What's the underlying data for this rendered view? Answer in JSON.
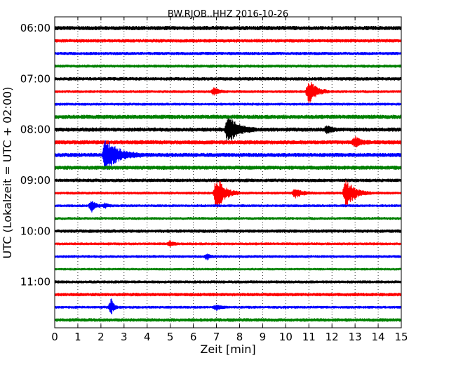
{
  "chart_data": {
    "type": "line",
    "title": "BW.RJOB..HHZ 2016-10-26",
    "xlabel": "Zeit  [min]",
    "ylabel": "UTC (Lokalzeit = UTC + 02:00)",
    "xlim": [
      0,
      15
    ],
    "x_ticks": [
      "0",
      "1",
      "2",
      "3",
      "4",
      "5",
      "6",
      "7",
      "8",
      "9",
      "10",
      "11",
      "12",
      "13",
      "14",
      "15"
    ],
    "y_ticks": [
      "06:00",
      "07:00",
      "08:00",
      "09:00",
      "10:00",
      "11:00"
    ],
    "grid": "vertical dotted at each minute",
    "trace_colors": [
      "#000000",
      "#ff0000",
      "#0000ff",
      "#008000"
    ],
    "series": [
      {
        "start": "06:00",
        "color": "#000000",
        "noise": 3,
        "bursts": []
      },
      {
        "start": "06:15",
        "color": "#ff0000",
        "noise": 2.5,
        "bursts": []
      },
      {
        "start": "06:30",
        "color": "#0000ff",
        "noise": 2.2,
        "bursts": []
      },
      {
        "start": "06:45",
        "color": "#008000",
        "noise": 2.2,
        "bursts": []
      },
      {
        "start": "07:00",
        "color": "#000000",
        "noise": 2.5,
        "bursts": []
      },
      {
        "start": "07:15",
        "color": "#ff0000",
        "noise": 2,
        "bursts": [
          {
            "t": 6.9,
            "amp": 6,
            "dur": 0.6
          },
          {
            "t": 11.0,
            "amp": 18,
            "dur": 0.9
          }
        ]
      },
      {
        "start": "07:30",
        "color": "#0000ff",
        "noise": 2,
        "bursts": []
      },
      {
        "start": "07:45",
        "color": "#008000",
        "noise": 3,
        "bursts": []
      },
      {
        "start": "08:00",
        "color": "#000000",
        "noise": 3,
        "bursts": [
          {
            "t": 7.5,
            "amp": 22,
            "dur": 1.2
          },
          {
            "t": 11.8,
            "amp": 6,
            "dur": 0.5
          }
        ]
      },
      {
        "start": "08:15",
        "color": "#ff0000",
        "noise": 3,
        "bursts": [
          {
            "t": 13.0,
            "amp": 8,
            "dur": 0.7
          }
        ]
      },
      {
        "start": "08:30",
        "color": "#0000ff",
        "noise": 3,
        "bursts": [
          {
            "t": 2.2,
            "amp": 24,
            "dur": 1.6
          }
        ]
      },
      {
        "start": "08:45",
        "color": "#008000",
        "noise": 3,
        "bursts": []
      },
      {
        "start": "09:00",
        "color": "#000000",
        "noise": 2.5,
        "bursts": []
      },
      {
        "start": "09:15",
        "color": "#ff0000",
        "noise": 2,
        "bursts": [
          {
            "t": 7.0,
            "amp": 26,
            "dur": 1.0
          },
          {
            "t": 10.4,
            "amp": 7,
            "dur": 0.9
          },
          {
            "t": 12.6,
            "amp": 22,
            "dur": 1.1
          }
        ]
      },
      {
        "start": "09:30",
        "color": "#0000ff",
        "noise": 2,
        "bursts": [
          {
            "t": 1.6,
            "amp": 8,
            "dur": 0.5
          },
          {
            "t": 2.2,
            "amp": 4,
            "dur": 0.3
          }
        ]
      },
      {
        "start": "09:45",
        "color": "#008000",
        "noise": 2,
        "bursts": []
      },
      {
        "start": "10:00",
        "color": "#000000",
        "noise": 2.5,
        "bursts": []
      },
      {
        "start": "10:15",
        "color": "#ff0000",
        "noise": 2,
        "bursts": [
          {
            "t": 5.0,
            "amp": 4,
            "dur": 0.4
          }
        ]
      },
      {
        "start": "10:30",
        "color": "#0000ff",
        "noise": 2,
        "bursts": [
          {
            "t": 6.6,
            "amp": 4,
            "dur": 0.4
          }
        ]
      },
      {
        "start": "10:45",
        "color": "#008000",
        "noise": 1.8,
        "bursts": []
      },
      {
        "start": "11:00",
        "color": "#000000",
        "noise": 2.2,
        "bursts": []
      },
      {
        "start": "11:15",
        "color": "#ff0000",
        "noise": 2.5,
        "bursts": []
      },
      {
        "start": "11:30",
        "color": "#0000ff",
        "noise": 2,
        "bursts": [
          {
            "t": 2.45,
            "amp": 13,
            "dur": 0.3
          },
          {
            "t": 7.0,
            "amp": 4,
            "dur": 0.5
          }
        ]
      },
      {
        "start": "11:45",
        "color": "#008000",
        "noise": 2.5,
        "bursts": []
      }
    ]
  }
}
